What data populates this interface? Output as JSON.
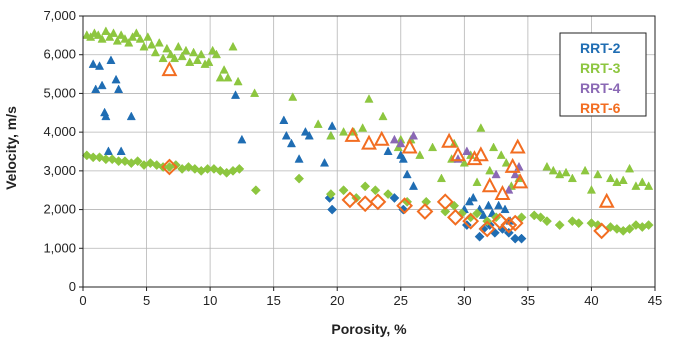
{
  "chart_data": {
    "type": "scatter",
    "title": "",
    "xlabel": "Porosity, %",
    "ylabel": "Velocity, m/s",
    "xlim": [
      0,
      45
    ],
    "ylim": [
      0,
      7000
    ],
    "x_ticks": [
      "0",
      "5",
      "10",
      "15",
      "20",
      "25",
      "30",
      "35",
      "40",
      "45"
    ],
    "y_ticks": [
      "0",
      "1,000",
      "2,000",
      "3,000",
      "4,000",
      "5,000",
      "6,000",
      "7,000"
    ],
    "grid": true,
    "legend_position": "top-right",
    "notes": "Triangles = compressional-wave velocity; diamonds = shear-wave velocity; open orange symbols for RRT-6.",
    "series": [
      {
        "name": "RRT-2",
        "color": "#1f6db3",
        "p_wave": [
          [
            0.8,
            5750
          ],
          [
            1,
            5100
          ],
          [
            1.3,
            5700
          ],
          [
            1.5,
            5200
          ],
          [
            1.7,
            4500
          ],
          [
            1.8,
            4400
          ],
          [
            2,
            3500
          ],
          [
            2.2,
            5850
          ],
          [
            2.6,
            5350
          ],
          [
            2.8,
            5100
          ],
          [
            3,
            3500
          ],
          [
            3.8,
            4400
          ],
          [
            12,
            4950
          ],
          [
            12.5,
            3800
          ],
          [
            15.8,
            4300
          ],
          [
            16,
            3900
          ],
          [
            16.4,
            3700
          ],
          [
            17,
            3300
          ],
          [
            17.5,
            4000
          ],
          [
            17.8,
            3900
          ],
          [
            19,
            3200
          ],
          [
            19.5,
            3900
          ],
          [
            19.6,
            4150
          ],
          [
            24,
            3500
          ],
          [
            25,
            3400
          ],
          [
            25.2,
            3300
          ],
          [
            25.5,
            2900
          ],
          [
            26,
            2600
          ],
          [
            30,
            2000
          ],
          [
            30.4,
            2200
          ],
          [
            30.7,
            2300
          ],
          [
            31.2,
            2000
          ],
          [
            31.5,
            1850
          ],
          [
            31.9,
            2100
          ],
          [
            32.2,
            1900
          ],
          [
            32.7,
            2100
          ],
          [
            33.2,
            2000
          ],
          [
            33.6,
            1700
          ]
        ],
        "s_wave": [
          [
            19.4,
            2300
          ],
          [
            19.6,
            2000
          ],
          [
            24.5,
            2300
          ],
          [
            25.2,
            2000
          ],
          [
            30.2,
            1600
          ],
          [
            31.2,
            1300
          ],
          [
            31.5,
            1500
          ],
          [
            32,
            1600
          ],
          [
            32.4,
            1400
          ],
          [
            33,
            1500
          ],
          [
            33.5,
            1400
          ],
          [
            34,
            1250
          ],
          [
            34.5,
            1250
          ]
        ]
      },
      {
        "name": "RRT-3",
        "color": "#8dc63f",
        "p_wave": [
          [
            0.3,
            6500
          ],
          [
            0.6,
            6450
          ],
          [
            0.9,
            6550
          ],
          [
            1.2,
            6500
          ],
          [
            1.5,
            6400
          ],
          [
            1.8,
            6600
          ],
          [
            2.1,
            6450
          ],
          [
            2.4,
            6550
          ],
          [
            2.7,
            6350
          ],
          [
            3,
            6500
          ],
          [
            3.3,
            6400
          ],
          [
            3.6,
            6300
          ],
          [
            3.9,
            6450
          ],
          [
            4.2,
            6550
          ],
          [
            4.5,
            6400
          ],
          [
            4.8,
            6200
          ],
          [
            5.1,
            6450
          ],
          [
            5.4,
            6250
          ],
          [
            5.7,
            6050
          ],
          [
            6,
            6300
          ],
          [
            6.3,
            5900
          ],
          [
            6.6,
            6150
          ],
          [
            6.9,
            6000
          ],
          [
            7.2,
            5900
          ],
          [
            7.5,
            6200
          ],
          [
            7.8,
            5950
          ],
          [
            8.1,
            6100
          ],
          [
            8.4,
            5800
          ],
          [
            8.7,
            6050
          ],
          [
            9,
            5850
          ],
          [
            9.3,
            6000
          ],
          [
            9.6,
            5750
          ],
          [
            9.9,
            5800
          ],
          [
            10.2,
            6100
          ],
          [
            10.5,
            6000
          ],
          [
            10.8,
            5400
          ],
          [
            11.1,
            5600
          ],
          [
            11.4,
            5400
          ],
          [
            11.8,
            6200
          ],
          [
            12.2,
            5300
          ],
          [
            13.5,
            5000
          ],
          [
            16.5,
            4900
          ],
          [
            18.5,
            4200
          ],
          [
            19.5,
            3900
          ],
          [
            20.5,
            4000
          ],
          [
            21.3,
            4000
          ],
          [
            22,
            4100
          ],
          [
            22.5,
            4850
          ],
          [
            23.6,
            4400
          ],
          [
            24.8,
            3600
          ],
          [
            25,
            3800
          ],
          [
            25.8,
            3800
          ],
          [
            26.5,
            3400
          ],
          [
            27.5,
            3600
          ],
          [
            28.2,
            2800
          ],
          [
            29,
            3300
          ],
          [
            29.2,
            3700
          ],
          [
            30,
            3200
          ],
          [
            30.5,
            3400
          ],
          [
            31,
            2700
          ],
          [
            31.3,
            4100
          ],
          [
            32,
            3000
          ],
          [
            32.3,
            3600
          ],
          [
            32.9,
            3400
          ],
          [
            33.3,
            3200
          ],
          [
            33.7,
            2600
          ],
          [
            34.3,
            2800
          ],
          [
            36.5,
            3100
          ],
          [
            37,
            3000
          ],
          [
            37.5,
            2900
          ],
          [
            38,
            2950
          ],
          [
            38.5,
            2800
          ],
          [
            39.5,
            3000
          ],
          [
            40,
            2500
          ],
          [
            40.5,
            2900
          ],
          [
            41.5,
            2800
          ],
          [
            42,
            2700
          ],
          [
            42.5,
            2750
          ],
          [
            43,
            3050
          ],
          [
            43.5,
            2600
          ],
          [
            44,
            2700
          ],
          [
            44.5,
            2600
          ]
        ],
        "s_wave": [
          [
            0.3,
            3400
          ],
          [
            0.8,
            3350
          ],
          [
            1.3,
            3350
          ],
          [
            1.8,
            3300
          ],
          [
            2.3,
            3300
          ],
          [
            2.8,
            3250
          ],
          [
            3.3,
            3250
          ],
          [
            3.8,
            3200
          ],
          [
            4.3,
            3250
          ],
          [
            4.8,
            3150
          ],
          [
            5.3,
            3200
          ],
          [
            5.8,
            3150
          ],
          [
            6.3,
            3100
          ],
          [
            6.8,
            3100
          ],
          [
            7.3,
            3150
          ],
          [
            7.8,
            3050
          ],
          [
            8.3,
            3100
          ],
          [
            8.8,
            3050
          ],
          [
            9.3,
            3000
          ],
          [
            9.8,
            3050
          ],
          [
            10.3,
            3050
          ],
          [
            10.8,
            3000
          ],
          [
            11.3,
            2950
          ],
          [
            11.8,
            3000
          ],
          [
            12.3,
            3050
          ],
          [
            13.6,
            2500
          ],
          [
            17,
            2800
          ],
          [
            19.5,
            2400
          ],
          [
            20.5,
            2500
          ],
          [
            21.5,
            2300
          ],
          [
            22.2,
            2600
          ],
          [
            23,
            2500
          ],
          [
            24,
            2400
          ],
          [
            25.5,
            2200
          ],
          [
            27,
            2200
          ],
          [
            28.5,
            1950
          ],
          [
            29.2,
            2100
          ],
          [
            29.8,
            1900
          ],
          [
            30.5,
            1800
          ],
          [
            31,
            1900
          ],
          [
            31.8,
            1700
          ],
          [
            32.5,
            1800
          ],
          [
            34.5,
            1800
          ],
          [
            35.5,
            1850
          ],
          [
            36,
            1800
          ],
          [
            36.5,
            1700
          ],
          [
            37.5,
            1600
          ],
          [
            38.5,
            1700
          ],
          [
            39,
            1650
          ],
          [
            40,
            1650
          ],
          [
            40.5,
            1600
          ],
          [
            41.5,
            1550
          ],
          [
            42,
            1500
          ],
          [
            42.5,
            1450
          ],
          [
            43,
            1500
          ],
          [
            43.5,
            1600
          ],
          [
            44,
            1550
          ],
          [
            44.5,
            1600
          ]
        ]
      },
      {
        "name": "RRT-4",
        "color": "#8a68b5",
        "p_wave": [
          [
            24.5,
            3800
          ],
          [
            25,
            3700
          ],
          [
            26,
            3900
          ],
          [
            29.5,
            3300
          ],
          [
            30.2,
            3500
          ],
          [
            32.5,
            2900
          ],
          [
            33.5,
            2500
          ],
          [
            34,
            2900
          ],
          [
            34.3,
            3100
          ]
        ],
        "s_wave": []
      },
      {
        "name": "RRT-6",
        "color": "#f26d21",
        "p_wave": [
          [
            6.8,
            5600
          ],
          [
            21.2,
            3900
          ],
          [
            22.5,
            3700
          ],
          [
            23.5,
            3800
          ],
          [
            25.7,
            3600
          ],
          [
            28.8,
            3750
          ],
          [
            29.5,
            3400
          ],
          [
            30.8,
            3300
          ],
          [
            31.3,
            3400
          ],
          [
            32,
            2600
          ],
          [
            33,
            2400
          ],
          [
            33.8,
            3100
          ],
          [
            34.2,
            3600
          ],
          [
            34.4,
            2700
          ],
          [
            41.2,
            2200
          ]
        ],
        "s_wave": [
          [
            6.8,
            3100
          ],
          [
            21,
            2250
          ],
          [
            22.2,
            2150
          ],
          [
            23.2,
            2200
          ],
          [
            25.3,
            2100
          ],
          [
            26.9,
            1950
          ],
          [
            28.5,
            2200
          ],
          [
            29.3,
            1800
          ],
          [
            30.5,
            1700
          ],
          [
            31.8,
            1500
          ],
          [
            32.8,
            1700
          ],
          [
            33.5,
            1600
          ],
          [
            34,
            1650
          ],
          [
            40.8,
            1450
          ]
        ]
      }
    ]
  }
}
